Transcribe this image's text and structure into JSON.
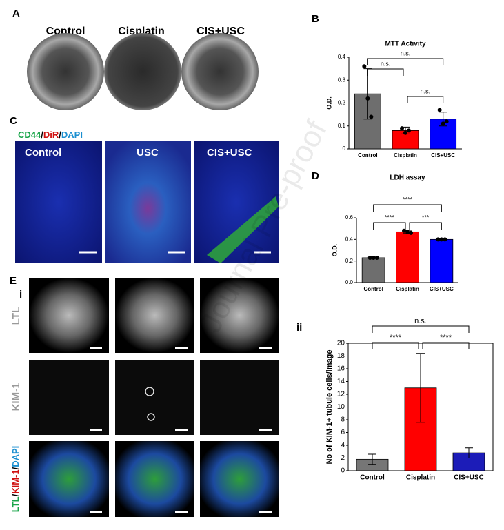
{
  "panels": {
    "A": {
      "label": "A",
      "columns": [
        "Control",
        "Cisplatin",
        "CIS+USC"
      ]
    },
    "B": {
      "label": "B"
    },
    "C": {
      "label": "C",
      "stain": [
        "CD44",
        "/",
        "DiR",
        "/",
        "DAPI"
      ],
      "columns": [
        "Control",
        "USC",
        "CIS+USC"
      ]
    },
    "D": {
      "label": "D"
    },
    "E": {
      "label": "E",
      "sub": "i",
      "rows": [
        "LTL",
        "KIM-1"
      ],
      "merge": [
        "LTL",
        "/",
        "KIM-1",
        "/",
        "DAPI"
      ],
      "sub2": "ii"
    }
  },
  "watermark": "Journal Pre-proof",
  "chart_data": [
    {
      "type": "bar",
      "title": "MTT Activity",
      "y_label": "O.D.",
      "categories": [
        "Control",
        "Cisplatin",
        "CIS+USC"
      ],
      "values": [
        0.24,
        0.08,
        0.13
      ],
      "errors": [
        0.11,
        0.015,
        0.03
      ],
      "points": [
        [
          0.36,
          0.22,
          0.14
        ],
        [
          0.09,
          0.07,
          0.08
        ],
        [
          0.17,
          0.11,
          0.12
        ]
      ],
      "colors": [
        "#6e6e6e",
        "#ff0000",
        "#0000ff"
      ],
      "ylim": [
        0,
        0.4
      ],
      "yticks": [
        0,
        0.1,
        0.2,
        0.3,
        0.4
      ],
      "comparisons": [
        {
          "groups": [
            "Control",
            "CIS+USC"
          ],
          "label": "n.s."
        },
        {
          "groups": [
            "Control",
            "Cisplatin"
          ],
          "label": "n.s."
        },
        {
          "groups": [
            "Cisplatin",
            "CIS+USC"
          ],
          "label": "n.s."
        }
      ]
    },
    {
      "type": "bar",
      "title": "LDH assay",
      "y_label": "O.D.",
      "categories": [
        "Control",
        "Cisplatin",
        "CIS+USC"
      ],
      "values": [
        0.23,
        0.47,
        0.4
      ],
      "errors": [
        0.005,
        0.015,
        0.005
      ],
      "points": [
        [
          0.23,
          0.23,
          0.23
        ],
        [
          0.48,
          0.47,
          0.46
        ],
        [
          0.4,
          0.4,
          0.4
        ]
      ],
      "colors": [
        "#6e6e6e",
        "#ff0000",
        "#0000ff"
      ],
      "ylim": [
        0,
        0.6
      ],
      "yticks": [
        {
          "value": 0,
          "label": "0.0"
        },
        0.2,
        0.4,
        0.6
      ],
      "comparisons": [
        {
          "groups": [
            "Control",
            "CIS+USC"
          ],
          "label": "****"
        },
        {
          "groups": [
            "Control",
            "Cisplatin"
          ],
          "label": "****"
        },
        {
          "groups": [
            "Cisplatin",
            "CIS+USC"
          ],
          "label": "***"
        }
      ]
    },
    {
      "type": "bar",
      "y_label": "No of KIM-1+ tubule cells/image",
      "categories": [
        "Control",
        "Cisplatin",
        "CIS+USC"
      ],
      "values": [
        1.8,
        13,
        2.8
      ],
      "errors": [
        0.8,
        5.4,
        0.8
      ],
      "colors": [
        "#767676",
        "#ff0000",
        "#1c1cb8"
      ],
      "ylim": [
        0,
        20
      ],
      "yticks": [
        0,
        2,
        4,
        6,
        8,
        10,
        12,
        14,
        16,
        18,
        20
      ],
      "comparisons": [
        {
          "groups": [
            "Control",
            "CIS+USC"
          ],
          "label": "n.s."
        },
        {
          "groups": [
            "Control",
            "Cisplatin"
          ],
          "label": "****"
        },
        {
          "groups": [
            "Cisplatin",
            "CIS+USC"
          ],
          "label": "****"
        }
      ]
    }
  ]
}
